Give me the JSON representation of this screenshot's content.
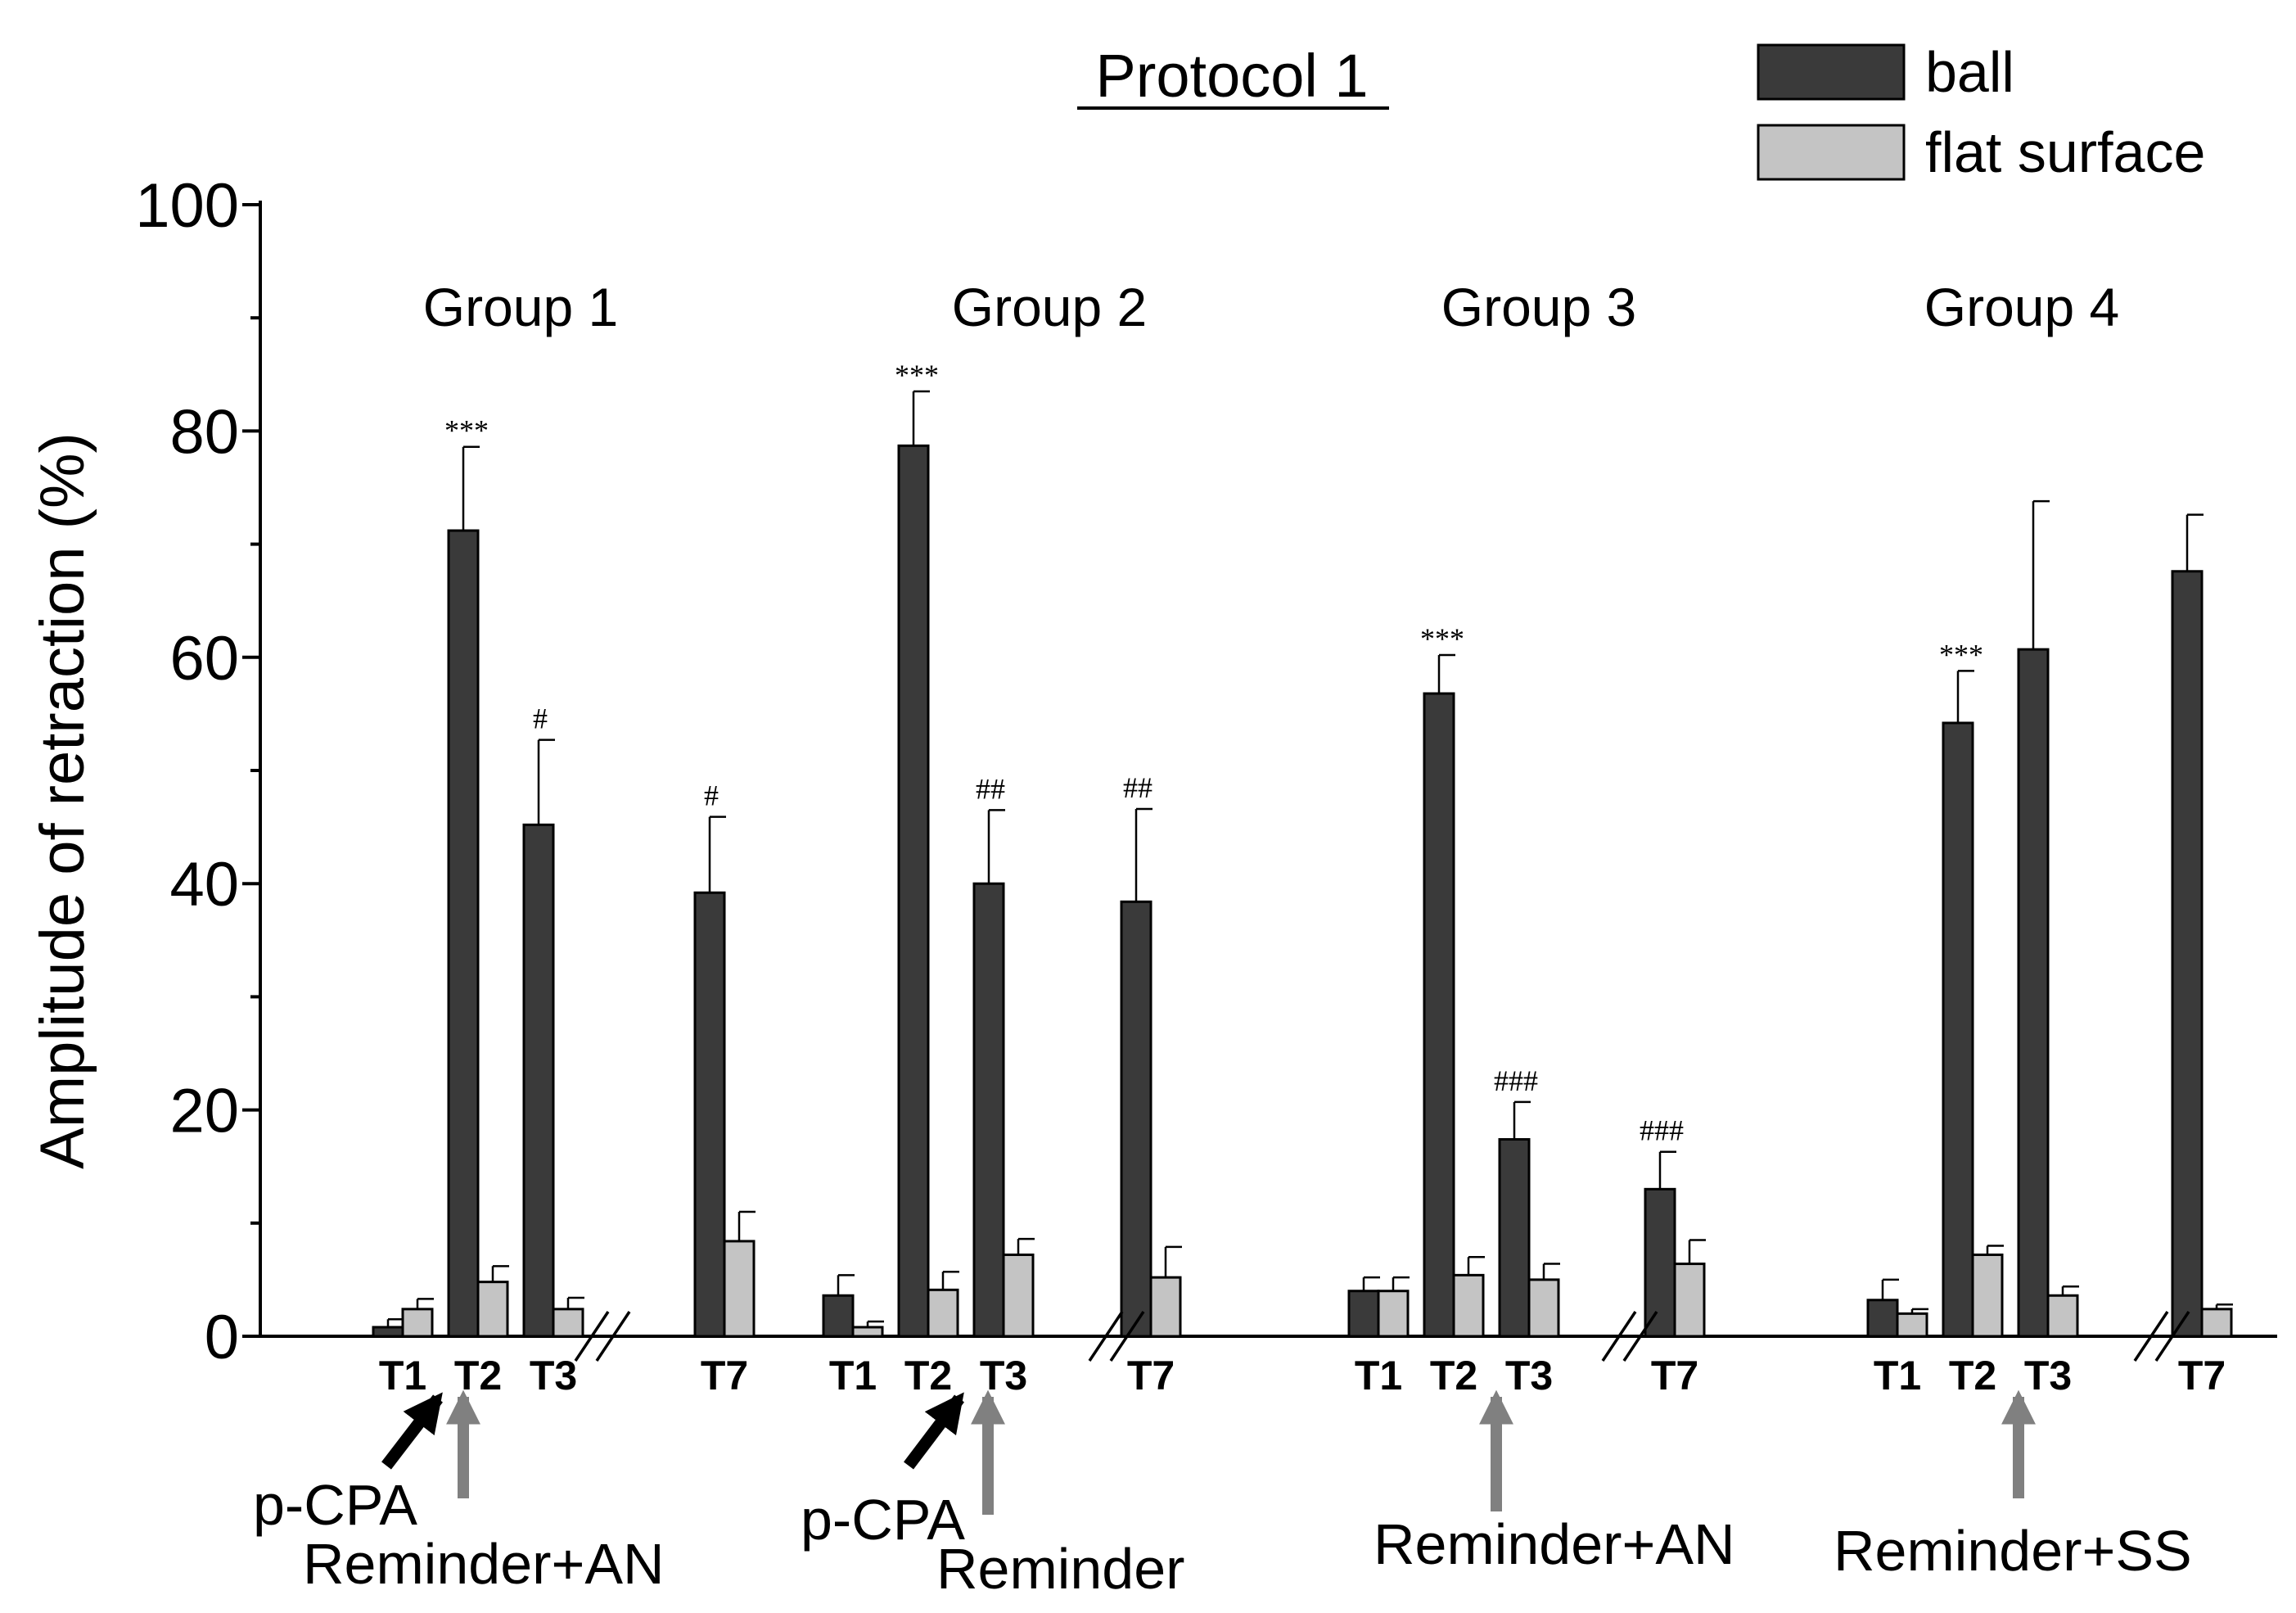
{
  "chart_data": {
    "type": "bar",
    "title": "Protocol 1",
    "ylabel": "Amplitude of retraction (%)",
    "xlabel": "",
    "ylim": [
      0,
      100
    ],
    "yticks": [
      "0",
      "20",
      "40",
      "60",
      "80",
      "100"
    ],
    "legend": {
      "placement": "top-right",
      "items": [
        {
          "name": "ball",
          "color": "#3a3a3a"
        },
        {
          "name": "flat surface",
          "color": "#c4c4c4"
        }
      ]
    },
    "groups": [
      {
        "label": "Group 1",
        "annotations": [
          "p-CPA",
          "Reminder+AN"
        ],
        "timepoints": [
          {
            "label": "T1",
            "ball": 0.8,
            "ball_err": 0.7,
            "flat": 2.4,
            "flat_err": 0.9,
            "sig": ""
          },
          {
            "label": "T2",
            "ball": 71.2,
            "ball_err": 7.4,
            "flat": 4.8,
            "flat_err": 1.4,
            "sig": "***"
          },
          {
            "label": "T3",
            "ball": 45.2,
            "ball_err": 7.5,
            "flat": 2.4,
            "flat_err": 1.0,
            "sig": "#"
          },
          {
            "label": "T7",
            "ball": 39.2,
            "ball_err": 6.7,
            "flat": 8.4,
            "flat_err": 2.6,
            "sig": "#"
          }
        ]
      },
      {
        "label": "Group 2",
        "annotations": [
          "p-CPA",
          "Reminder"
        ],
        "timepoints": [
          {
            "label": "T1",
            "ball": 3.6,
            "ball_err": 1.8,
            "flat": 0.8,
            "flat_err": 0.5,
            "sig": ""
          },
          {
            "label": "T2",
            "ball": 78.7,
            "ball_err": 4.8,
            "flat": 4.1,
            "flat_err": 1.6,
            "sig": "***"
          },
          {
            "label": "T3",
            "ball": 40.0,
            "ball_err": 6.5,
            "flat": 7.2,
            "flat_err": 1.4,
            "sig": "##"
          },
          {
            "label": "T7",
            "ball": 38.4,
            "ball_err": 8.2,
            "flat": 5.2,
            "flat_err": 2.7,
            "sig": "##"
          }
        ]
      },
      {
        "label": "Group 3",
        "annotations": [
          "Reminder+AN"
        ],
        "timepoints": [
          {
            "label": "T1",
            "ball": 4.0,
            "ball_err": 1.2,
            "flat": 4.0,
            "flat_err": 1.2,
            "sig": ""
          },
          {
            "label": "T2",
            "ball": 56.8,
            "ball_err": 3.4,
            "flat": 5.4,
            "flat_err": 1.6,
            "sig": "***"
          },
          {
            "label": "T3",
            "ball": 17.4,
            "ball_err": 3.3,
            "flat": 5.0,
            "flat_err": 1.4,
            "sig": "###"
          },
          {
            "label": "T7",
            "ball": 13.0,
            "ball_err": 3.3,
            "flat": 6.4,
            "flat_err": 2.1,
            "sig": "###"
          }
        ]
      },
      {
        "label": "Group 4",
        "annotations": [
          "Reminder+SS"
        ],
        "timepoints": [
          {
            "label": "T1",
            "ball": 3.2,
            "ball_err": 1.8,
            "flat": 2.0,
            "flat_err": 0.4,
            "sig": ""
          },
          {
            "label": "T2",
            "ball": 54.2,
            "ball_err": 4.6,
            "flat": 7.2,
            "flat_err": 0.8,
            "sig": "***"
          },
          {
            "label": "T3",
            "ball": 60.7,
            "ball_err": 13.1,
            "flat": 3.6,
            "flat_err": 0.8,
            "sig": ""
          },
          {
            "label": "T7",
            "ball": 67.6,
            "ball_err": 5.0,
            "flat": 2.4,
            "flat_err": 0.4,
            "sig": ""
          }
        ]
      }
    ]
  }
}
